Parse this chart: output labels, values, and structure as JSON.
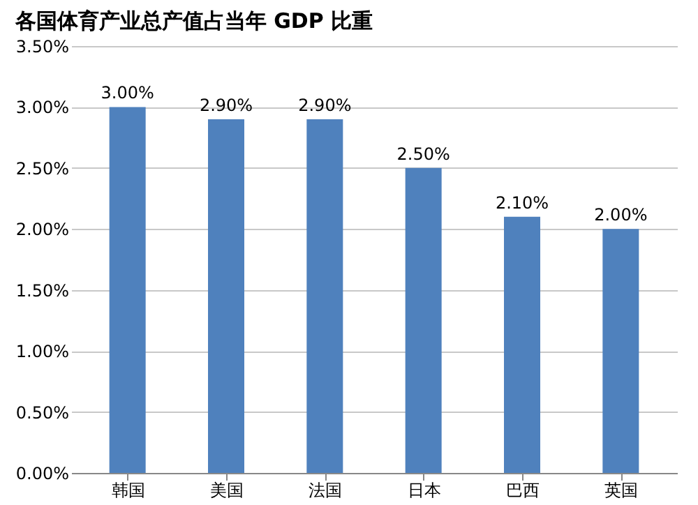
{
  "chart_data": {
    "type": "bar",
    "title": "各国体育产业总产值占当年 GDP 比重",
    "categories": [
      "韩国",
      "美国",
      "法国",
      "日本",
      "巴西",
      "英国"
    ],
    "values": [
      3.0,
      2.9,
      2.9,
      2.5,
      2.1,
      2.0
    ],
    "value_labels": [
      "3.00%",
      "2.90%",
      "2.90%",
      "2.50%",
      "2.10%",
      "2.00%"
    ],
    "color": "#4f81bd",
    "ylim": [
      0,
      3.5
    ],
    "yticks": [
      {
        "value": 0,
        "label": "0.00%"
      },
      {
        "value": 0.5,
        "label": "0.50%"
      },
      {
        "value": 1.0,
        "label": "1.00%"
      },
      {
        "value": 1.5,
        "label": "1.50%"
      },
      {
        "value": 2.0,
        "label": "2.00%"
      },
      {
        "value": 2.5,
        "label": "2.50%"
      },
      {
        "value": 3.0,
        "label": "3.00%"
      },
      {
        "value": 3.5,
        "label": "3.50%"
      }
    ],
    "grid": "y"
  }
}
